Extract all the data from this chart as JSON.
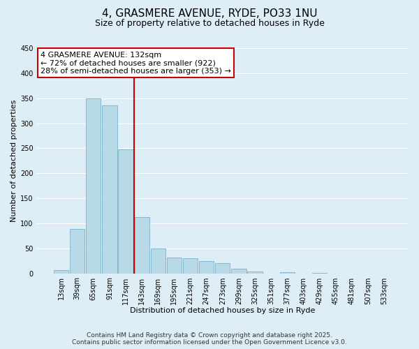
{
  "title": "4, GRASMERE AVENUE, RYDE, PO33 1NU",
  "subtitle": "Size of property relative to detached houses in Ryde",
  "xlabel": "Distribution of detached houses by size in Ryde",
  "ylabel": "Number of detached properties",
  "categories": [
    "13sqm",
    "39sqm",
    "65sqm",
    "91sqm",
    "117sqm",
    "143sqm",
    "169sqm",
    "195sqm",
    "221sqm",
    "247sqm",
    "273sqm",
    "299sqm",
    "325sqm",
    "351sqm",
    "377sqm",
    "403sqm",
    "429sqm",
    "455sqm",
    "481sqm",
    "507sqm",
    "533sqm"
  ],
  "values": [
    7,
    89,
    349,
    336,
    248,
    112,
    50,
    32,
    30,
    25,
    21,
    9,
    4,
    0,
    2,
    0,
    1,
    0,
    0,
    0,
    0
  ],
  "bar_color": "#b8d9e8",
  "bar_edge_color": "#7ab3cc",
  "vline_color": "#cc0000",
  "vline_bar_index": 5,
  "annotation_line1": "4 GRASMERE AVENUE: 132sqm",
  "annotation_line2": "← 72% of detached houses are smaller (922)",
  "annotation_line3": "28% of semi-detached houses are larger (353) →",
  "annotation_box_color": "white",
  "annotation_box_edge": "#cc0000",
  "ylim": [
    0,
    450
  ],
  "yticks": [
    0,
    50,
    100,
    150,
    200,
    250,
    300,
    350,
    400,
    450
  ],
  "footer1": "Contains HM Land Registry data © Crown copyright and database right 2025.",
  "footer2": "Contains public sector information licensed under the Open Government Licence v3.0.",
  "bg_color": "#deeef6",
  "grid_color": "white",
  "title_fontsize": 11,
  "subtitle_fontsize": 9,
  "axis_label_fontsize": 8,
  "tick_fontsize": 7,
  "annotation_fontsize": 8,
  "footer_fontsize": 6.5
}
